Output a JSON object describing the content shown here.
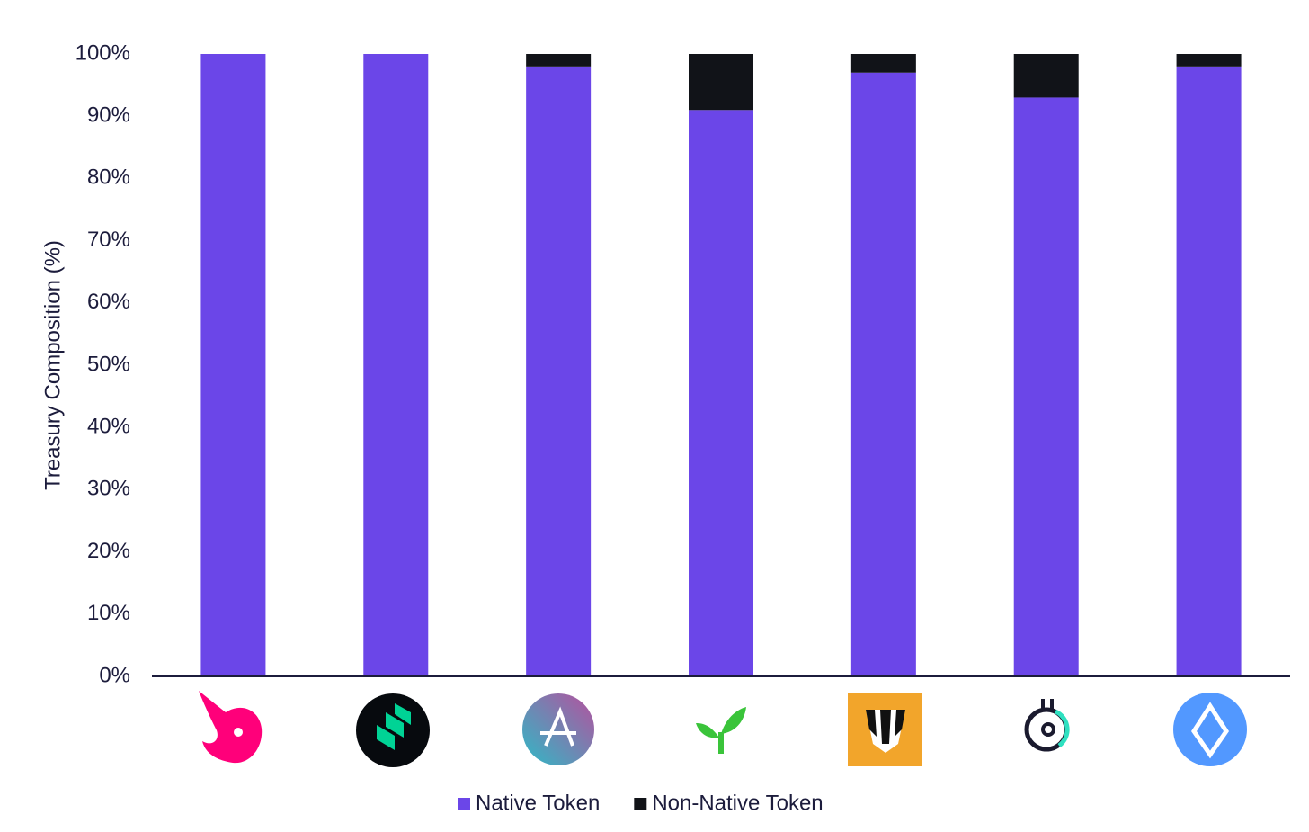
{
  "chart_data": {
    "type": "stacked_bar",
    "y_label": "Treasury Composition (%)",
    "categories": [
      null,
      null,
      null,
      null,
      null,
      null,
      null
    ],
    "series": [
      {
        "name": "Native Token",
        "color": "#6b46e8",
        "values": [
          100,
          100,
          98,
          91,
          97,
          93,
          98
        ]
      },
      {
        "name": "Non-Native Token",
        "color": "#111318",
        "values": [
          0,
          0,
          2,
          9,
          3,
          7,
          2
        ]
      }
    ],
    "ylim": [
      0,
      100
    ],
    "yticks": [
      {
        "value": 0,
        "label": "0%"
      },
      {
        "value": 10,
        "label": "10%"
      },
      {
        "value": 20,
        "label": "20%"
      },
      {
        "value": 30,
        "label": "30%"
      },
      {
        "value": 40,
        "label": "40%"
      },
      {
        "value": 50,
        "label": "50%"
      },
      {
        "value": 60,
        "label": "60%"
      },
      {
        "value": 70,
        "label": "70%"
      },
      {
        "value": 80,
        "label": "80%"
      },
      {
        "value": 90,
        "label": "90%"
      },
      {
        "value": 100,
        "label": "100%"
      }
    ],
    "legend": "bottom"
  }
}
